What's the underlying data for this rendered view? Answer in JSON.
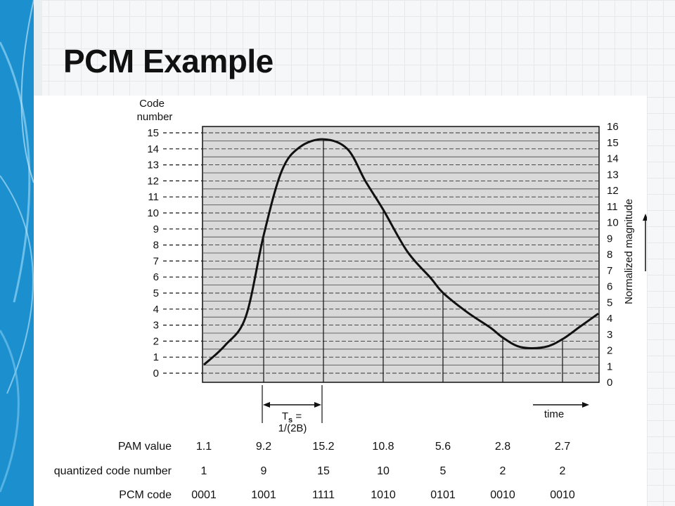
{
  "slide": {
    "title": "PCM Example",
    "accent_color": "#2a9fd6"
  },
  "figure": {
    "left_axis_title_line1": "Code",
    "left_axis_title_line2": "number",
    "left_ticks": [
      "0",
      "1",
      "2",
      "3",
      "4",
      "5",
      "6",
      "7",
      "8",
      "9",
      "10",
      "11",
      "12",
      "13",
      "14",
      "15"
    ],
    "right_ticks": [
      "0",
      "1",
      "2",
      "3",
      "4",
      "5",
      "6",
      "7",
      "8",
      "9",
      "10",
      "11",
      "12",
      "13",
      "14",
      "15",
      "16"
    ],
    "right_axis_label": "Normalized magnitude",
    "time_label": "time",
    "ts_label_main": "T",
    "ts_label_sub": "s",
    "ts_label_eq": " =",
    "ts_label_line2": "1/(2B)",
    "curve_points": [
      [
        0,
        1.1
      ],
      [
        0.35,
        2.3
      ],
      [
        0.7,
        4.1
      ],
      [
        1,
        9.2
      ],
      [
        1.3,
        13.2
      ],
      [
        1.6,
        14.7
      ],
      [
        2,
        15.2
      ],
      [
        2.4,
        14.6
      ],
      [
        2.7,
        12.6
      ],
      [
        3,
        10.8
      ],
      [
        3.4,
        8.2
      ],
      [
        3.8,
        6.5
      ],
      [
        4,
        5.6
      ],
      [
        4.4,
        4.4
      ],
      [
        4.8,
        3.4
      ],
      [
        5,
        2.8
      ],
      [
        5.3,
        2.2
      ],
      [
        5.7,
        2.2
      ],
      [
        6,
        2.7
      ],
      [
        6.3,
        3.5
      ],
      [
        6.6,
        4.3
      ]
    ],
    "sample_times": [
      1,
      2,
      3,
      4,
      5,
      6
    ],
    "table": {
      "row_labels": [
        "PAM value",
        "quantized code number",
        "PCM code"
      ],
      "pam_values": [
        "1.1",
        "9.2",
        "15.2",
        "10.8",
        "5.6",
        "2.8",
        "2.7"
      ],
      "code_numbers": [
        "1",
        "9",
        "15",
        "10",
        "5",
        "2",
        "2"
      ],
      "pcm_codes": [
        "0001",
        "1001",
        "1111",
        "1010",
        "0101",
        "0010",
        "0010"
      ]
    },
    "colors": {
      "plot_fill": "#d9d9d9",
      "ink": "#111111"
    }
  }
}
